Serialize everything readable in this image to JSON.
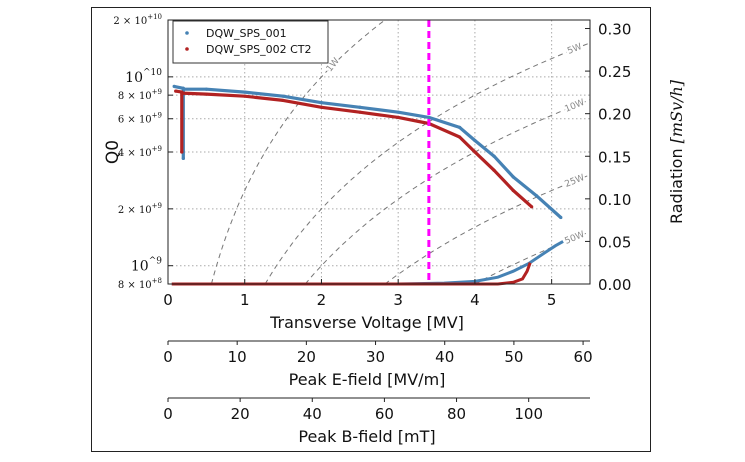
{
  "chart_data": {
    "type": "scatter",
    "x_axes": [
      {
        "label": "Transverse Voltage [MV]",
        "range": [
          0,
          5.5
        ],
        "ticks": [
          "0",
          "1",
          "2",
          "3",
          "4",
          "5"
        ],
        "tick_values": [
          0,
          1,
          2,
          3,
          4,
          5
        ]
      },
      {
        "label": "Peak E-field [MV/m]",
        "range": [
          0,
          61
        ],
        "ticks": [
          "0",
          "10",
          "20",
          "30",
          "40",
          "50",
          "60"
        ],
        "tick_values": [
          0,
          10,
          20,
          30,
          40,
          50,
          60
        ]
      },
      {
        "label": "Peak B-field [mT]",
        "range": [
          0,
          117
        ],
        "ticks": [
          "0",
          "20",
          "40",
          "60",
          "80",
          "100"
        ],
        "tick_values": [
          0,
          20,
          40,
          60,
          80,
          100
        ]
      }
    ],
    "y_left": {
      "label": "Q0",
      "scale": "log",
      "range": [
        800000000.0,
        20000000000.0
      ],
      "ticks": [
        {
          "value": 20000000000.0,
          "label": "2 × 10+10",
          "base": "2 × 10",
          "exp": "+10",
          "major": false
        },
        {
          "value": 10000000000.0,
          "label": "10^10",
          "base": "10",
          "exp": "10",
          "major": true
        },
        {
          "value": 8000000000.0,
          "label": "8 × 10+9",
          "base": "8 × 10",
          "exp": "+9",
          "major": false
        },
        {
          "value": 6000000000.0,
          "label": "6 × 10+9",
          "base": "6 × 10",
          "exp": "+9",
          "major": false
        },
        {
          "value": 4000000000.0,
          "label": "4 × 10+9",
          "base": "4 × 10",
          "exp": "+9",
          "major": false
        },
        {
          "value": 2000000000.0,
          "label": "2 × 10+9",
          "base": "2 × 10",
          "exp": "+9",
          "major": false
        },
        {
          "value": 1000000000.0,
          "label": "10^9",
          "base": "10",
          "exp": "9",
          "major": true
        },
        {
          "value": 800000000.0,
          "label": "8 × 10+8",
          "base": "8 × 10",
          "exp": "+8",
          "major": false
        }
      ]
    },
    "y_right": {
      "label": "Radiation [mSv/h]",
      "label_prefix": "Radiation ",
      "label_math": "[mSv/h]",
      "range": [
        0,
        0.31
      ],
      "ticks": [
        "0.00",
        "0.05",
        "0.10",
        "0.15",
        "0.20",
        "0.25",
        "0.30"
      ],
      "tick_values": [
        0,
        0.05,
        0.1,
        0.15,
        0.2,
        0.25,
        0.3
      ]
    },
    "grid": true,
    "legend": {
      "placement": "top-left"
    },
    "series": [
      {
        "name": "DQW_SPS_001",
        "color": "#4682b4",
        "q0": [
          [
            0.08,
            8900000000.0
          ],
          [
            0.2,
            8700000000.0
          ],
          [
            0.2,
            3700000000.0
          ],
          [
            0.2,
            8600000000.0
          ],
          [
            0.5,
            8600000000.0
          ],
          [
            1,
            8300000000.0
          ],
          [
            1.5,
            7900000000.0
          ],
          [
            2,
            7300000000.0
          ],
          [
            2.5,
            6900000000.0
          ],
          [
            3,
            6500000000.0
          ],
          [
            3.4,
            6100000000.0
          ],
          [
            3.8,
            5400000000.0
          ],
          [
            4.0,
            4600000000.0
          ],
          [
            4.25,
            3800000000.0
          ],
          [
            4.5,
            2950000000.0
          ],
          [
            4.8,
            2350000000.0
          ],
          [
            5.12,
            1800000000.0
          ]
        ],
        "radiation": [
          [
            0.05,
            0
          ],
          [
            3.0,
            0
          ],
          [
            3.6,
            0.001
          ],
          [
            4.0,
            0.003
          ],
          [
            4.3,
            0.008
          ],
          [
            4.5,
            0.015
          ],
          [
            4.7,
            0.024
          ],
          [
            4.9,
            0.036
          ],
          [
            5.05,
            0.045
          ],
          [
            5.15,
            0.05
          ]
        ]
      },
      {
        "name": "DQW_SPS_002 CT2",
        "color": "#b22222",
        "q0": [
          [
            0.1,
            8400000000.0
          ],
          [
            0.18,
            8300000000.0
          ],
          [
            0.18,
            4000000000.0
          ],
          [
            0.18,
            8200000000.0
          ],
          [
            0.5,
            8100000000.0
          ],
          [
            1,
            7900000000.0
          ],
          [
            1.5,
            7500000000.0
          ],
          [
            2,
            6900000000.0
          ],
          [
            2.5,
            6500000000.0
          ],
          [
            3,
            6100000000.0
          ],
          [
            3.4,
            5660000000.0
          ],
          [
            3.8,
            4800000000.0
          ],
          [
            4.0,
            4000000000.0
          ],
          [
            4.25,
            3200000000.0
          ],
          [
            4.5,
            2500000000.0
          ],
          [
            4.74,
            2050000000.0
          ]
        ],
        "radiation": [
          [
            0.05,
            0
          ],
          [
            4.3,
            0
          ],
          [
            4.5,
            0.002
          ],
          [
            4.62,
            0.006
          ],
          [
            4.68,
            0.015
          ],
          [
            4.72,
            0.025
          ]
        ]
      }
    ],
    "power_lines": [
      {
        "label": "1W",
        "watts": 1
      },
      {
        "label": "5W",
        "watts": 5
      },
      {
        "label": "10W",
        "watts": 10
      },
      {
        "label": "25W",
        "watts": 25
      },
      {
        "label": "50W",
        "watts": 50
      }
    ],
    "marker_line": {
      "x": 3.4,
      "color": "#ff00ff"
    }
  }
}
